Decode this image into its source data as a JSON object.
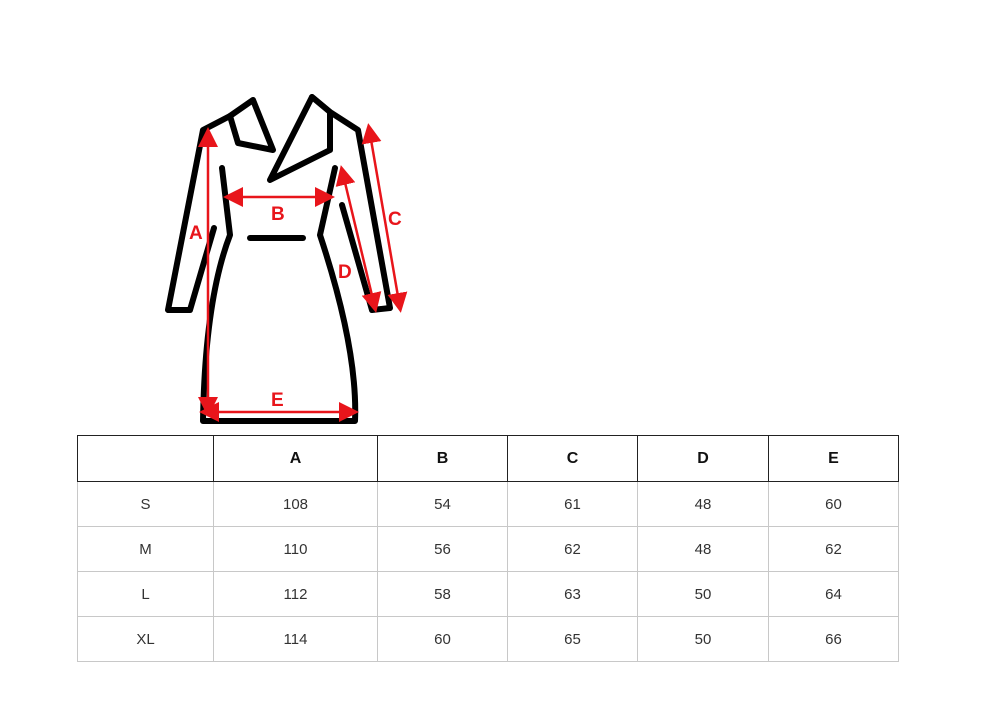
{
  "diagram": {
    "labels": {
      "A": "A",
      "B": "B",
      "C": "C",
      "D": "D",
      "E": "E"
    },
    "colors": {
      "outline": "#000000",
      "measure": "#e8151b"
    }
  },
  "table": {
    "headers": [
      "",
      "A",
      "B",
      "C",
      "D",
      "E"
    ],
    "rows": [
      [
        "S",
        "108",
        "54",
        "61",
        "48",
        "60"
      ],
      [
        "M",
        "110",
        "56",
        "62",
        "48",
        "62"
      ],
      [
        "L",
        "112",
        "58",
        "63",
        "50",
        "64"
      ],
      [
        "XL",
        "114",
        "60",
        "65",
        "50",
        "66"
      ]
    ]
  }
}
